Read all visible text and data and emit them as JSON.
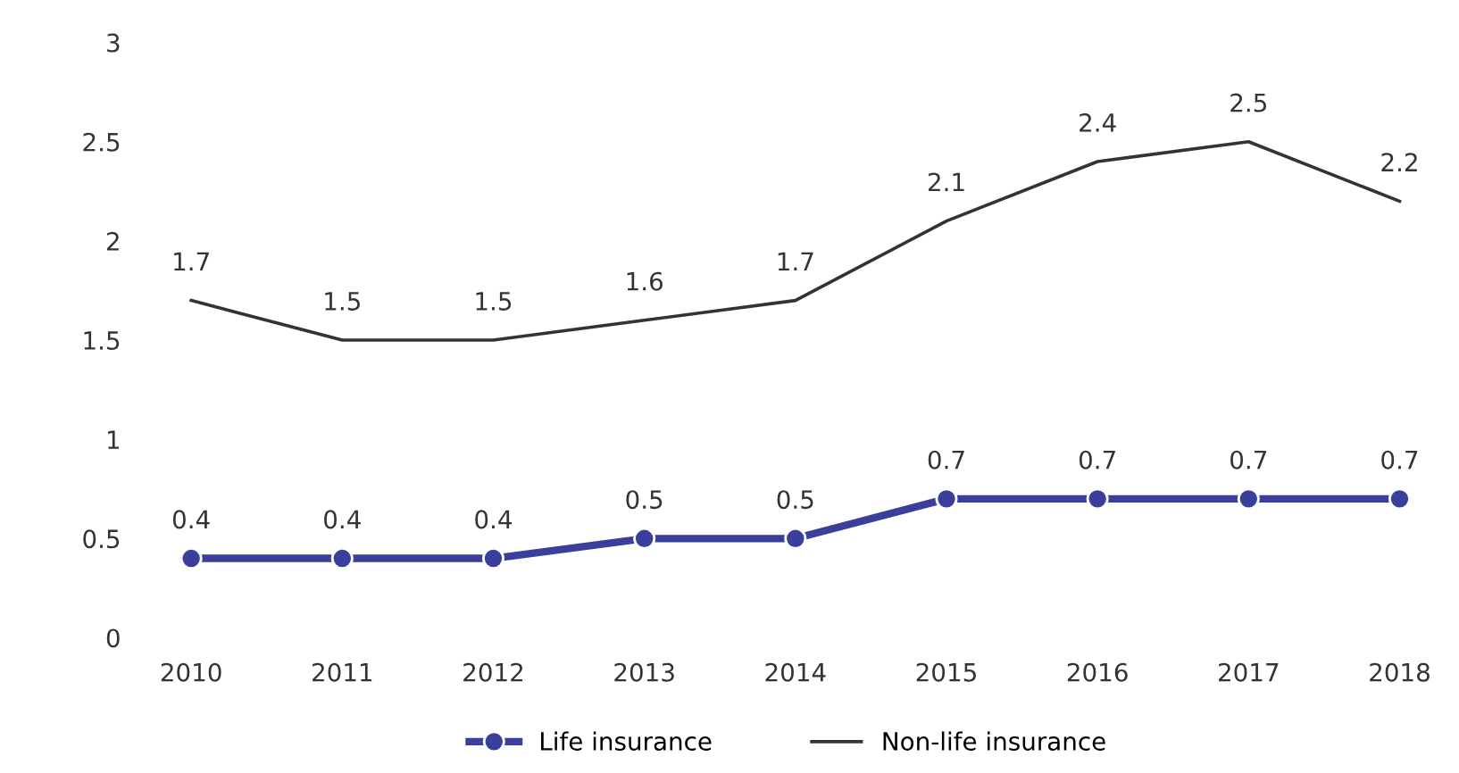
{
  "chart_data": {
    "type": "line",
    "categories": [
      "2010",
      "2011",
      "2012",
      "2013",
      "2014",
      "2015",
      "2016",
      "2017",
      "2018"
    ],
    "series": [
      {
        "name": "Life insurance",
        "color": "#3b3f9c",
        "values": [
          0.4,
          0.4,
          0.4,
          0.5,
          0.5,
          0.7,
          0.7,
          0.7,
          0.7
        ],
        "marker": "circle"
      },
      {
        "name": "Non-life insurance",
        "color": "#333333",
        "values": [
          1.7,
          1.5,
          1.5,
          1.6,
          1.7,
          2.1,
          2.4,
          2.5,
          2.2
        ],
        "marker": "none"
      }
    ],
    "ylim": [
      0,
      3
    ],
    "yticks": [
      0,
      0.5,
      1,
      1.5,
      2,
      2.5,
      3
    ],
    "data_labels": true,
    "grid": false,
    "legend": "bottom",
    "line_style": "solid"
  }
}
